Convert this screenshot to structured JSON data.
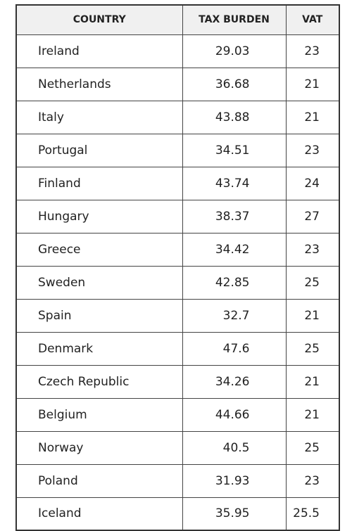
{
  "table": {
    "header": [
      "COUNTRY",
      "TAX BURDEN",
      "VAT"
    ],
    "rows": [
      [
        "Ireland",
        29.03,
        23
      ],
      [
        "Netherlands",
        36.68,
        21
      ],
      [
        "Italy",
        43.88,
        21
      ],
      [
        "Portugal",
        34.51,
        23
      ],
      [
        "Finland",
        43.74,
        24
      ],
      [
        "Hungary",
        38.37,
        27
      ],
      [
        "Greece",
        34.42,
        23
      ],
      [
        "Sweden",
        42.85,
        25
      ],
      [
        "Spain",
        32.7,
        21
      ],
      [
        "Denmark",
        47.6,
        25
      ],
      [
        "Czech Republic",
        34.26,
        21
      ],
      [
        "Belgium",
        44.66,
        21
      ],
      [
        "Norway",
        40.5,
        25
      ],
      [
        "Poland",
        31.93,
        23
      ],
      [
        "Iceland",
        35.95,
        25.5
      ]
    ]
  }
}
